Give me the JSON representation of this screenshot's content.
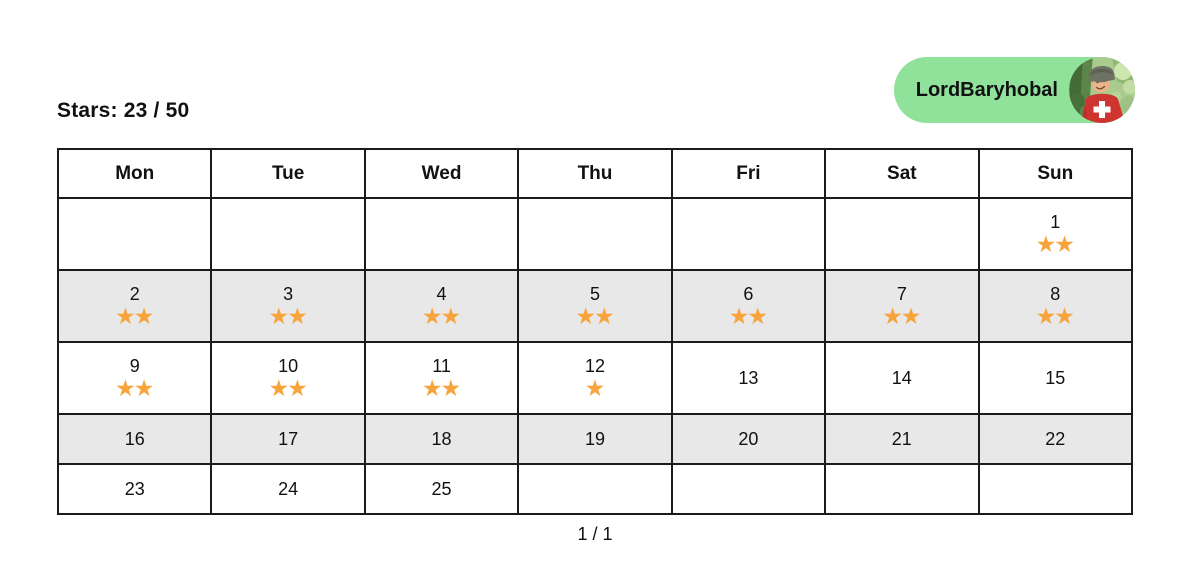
{
  "header": {
    "stars_label": "Stars: 23 / 50"
  },
  "user_badge": {
    "name": "LordBaryhobal"
  },
  "calendar": {
    "weekdays": [
      "Mon",
      "Tue",
      "Wed",
      "Thu",
      "Fri",
      "Sat",
      "Sun"
    ],
    "rows": [
      [
        null,
        null,
        null,
        null,
        null,
        null,
        {
          "day": 1,
          "stars": 2
        }
      ],
      [
        {
          "day": 2,
          "stars": 2
        },
        {
          "day": 3,
          "stars": 2
        },
        {
          "day": 4,
          "stars": 2
        },
        {
          "day": 5,
          "stars": 2
        },
        {
          "day": 6,
          "stars": 2
        },
        {
          "day": 7,
          "stars": 2
        },
        {
          "day": 8,
          "stars": 2
        }
      ],
      [
        {
          "day": 9,
          "stars": 2
        },
        {
          "day": 10,
          "stars": 2
        },
        {
          "day": 11,
          "stars": 2
        },
        {
          "day": 12,
          "stars": 1
        },
        {
          "day": 13,
          "stars": 0
        },
        {
          "day": 14,
          "stars": 0
        },
        {
          "day": 15,
          "stars": 0
        }
      ],
      [
        {
          "day": 16,
          "stars": 0
        },
        {
          "day": 17,
          "stars": 0
        },
        {
          "day": 18,
          "stars": 0
        },
        {
          "day": 19,
          "stars": 0
        },
        {
          "day": 20,
          "stars": 0
        },
        {
          "day": 21,
          "stars": 0
        },
        {
          "day": 22,
          "stars": 0
        }
      ],
      [
        {
          "day": 23,
          "stars": 0
        },
        {
          "day": 24,
          "stars": 0
        },
        {
          "day": 25,
          "stars": 0
        },
        null,
        null,
        null,
        null
      ]
    ]
  },
  "pagination": {
    "label": "1 / 1"
  },
  "icons": {
    "star": "★"
  },
  "colors": {
    "star": "#F8A43C",
    "alt_row": "#E8E8E8",
    "border": "#1B1B1B",
    "badge_green": "#90E29B"
  }
}
